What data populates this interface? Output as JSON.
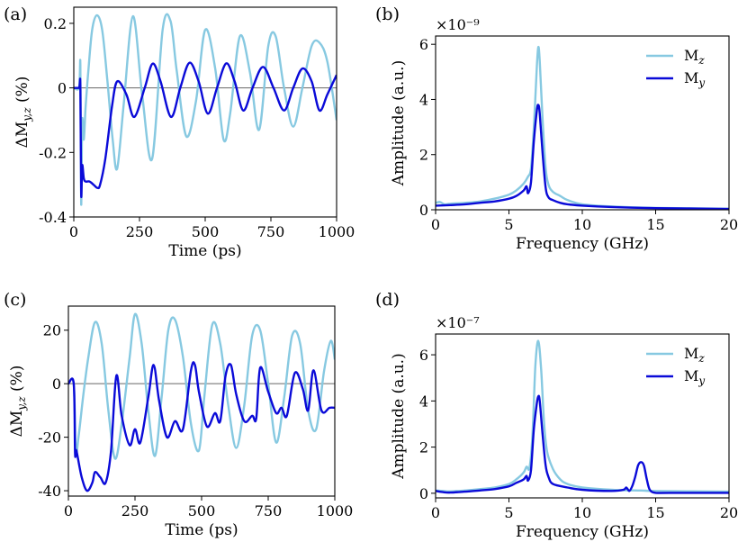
{
  "colors": {
    "light": "#87c9e1",
    "dark": "#0a0ad8",
    "axis": "#000000",
    "zero": "#666666"
  },
  "chart_data": [
    {
      "panel": "(a)",
      "type": "line",
      "xlabel": "Time (ps)",
      "ylabel": "ΔM_y,z (%)",
      "xlim": [
        0,
        1000
      ],
      "ylim": [
        -0.4,
        0.25
      ],
      "xticks": [
        0,
        250,
        500,
        750,
        1000
      ],
      "xtick_labels": [
        "0",
        "250",
        "500",
        "750",
        "1000"
      ],
      "yticks": [
        -0.4,
        -0.2,
        0,
        0.2
      ],
      "ytick_labels": [
        "-0.4",
        "-0.2",
        "0",
        "0.2"
      ],
      "hline": 0,
      "series": [
        {
          "name": "M_z",
          "color": "light",
          "x": [
            0,
            20,
            25,
            28,
            32,
            38,
            45,
            55,
            70,
            88,
            108,
            128,
            148,
            165,
            190,
            225,
            260,
            298,
            338,
            368,
            392,
            428,
            465,
            500,
            538,
            570,
            595,
            632,
            670,
            705,
            740,
            768,
            800,
            835,
            870,
            905,
            935,
            965,
            1000
          ],
          "y": [
            0,
            0,
            0.07,
            -0.36,
            -0.1,
            -0.16,
            -0.06,
            0.05,
            0.18,
            0.225,
            0.18,
            0.02,
            -0.16,
            -0.25,
            -0.05,
            0.222,
            -0.02,
            -0.22,
            0.18,
            0.207,
            0.05,
            -0.15,
            -0.04,
            0.18,
            0.06,
            -0.16,
            -0.08,
            0.16,
            0.05,
            -0.13,
            0.13,
            0.16,
            0.0,
            -0.12,
            0.0,
            0.13,
            0.14,
            0.08,
            -0.1
          ]
        },
        {
          "name": "M_y",
          "color": "dark",
          "x": [
            0,
            20,
            25,
            28,
            32,
            38,
            45,
            60,
            75,
            90,
            100,
            120,
            145,
            165,
            200,
            230,
            270,
            300,
            330,
            370,
            405,
            440,
            475,
            510,
            545,
            580,
            612,
            645,
            680,
            720,
            760,
            800,
            835,
            870,
            905,
            935,
            965,
            1000
          ],
          "y": [
            0,
            0,
            0.005,
            -0.33,
            -0.24,
            -0.28,
            -0.29,
            -0.29,
            -0.3,
            -0.31,
            -0.3,
            -0.22,
            -0.06,
            0.02,
            -0.02,
            -0.09,
            0.0,
            0.075,
            0.02,
            -0.09,
            0.0,
            0.078,
            0.02,
            -0.08,
            0.0,
            0.076,
            0.02,
            -0.07,
            0.0,
            0.065,
            0.0,
            -0.07,
            0.0,
            0.06,
            0.02,
            -0.07,
            -0.02,
            0.04
          ]
        }
      ]
    },
    {
      "panel": "(b)",
      "type": "line",
      "xlabel": "Frequency (GHz)",
      "ylabel": "Amplitude (a.u.)",
      "scale_label": "×10⁻⁹",
      "xlim": [
        0,
        20
      ],
      "ylim": [
        0,
        6.3
      ],
      "xticks": [
        0,
        5,
        10,
        15,
        20
      ],
      "xtick_labels": [
        "0",
        "5",
        "10",
        "15",
        "20"
      ],
      "yticks": [
        0,
        2,
        4,
        6
      ],
      "ytick_labels": [
        "0",
        "2",
        "4",
        "6"
      ],
      "legend": [
        "M_z",
        "M_y"
      ],
      "legend_position": "top-right",
      "series": [
        {
          "name": "M_z",
          "color": "light",
          "x": [
            0,
            0.3,
            0.6,
            1,
            2,
            3,
            4,
            5,
            5.5,
            6,
            6.3,
            6.5,
            6.7,
            6.9,
            7.0,
            7.1,
            7.3,
            7.5,
            7.7,
            8,
            8.5,
            9,
            10,
            12,
            15,
            20
          ],
          "y": [
            0.25,
            0.28,
            0.2,
            0.22,
            0.25,
            0.3,
            0.4,
            0.55,
            0.7,
            0.95,
            1.2,
            1.5,
            3,
            5.2,
            5.9,
            5.4,
            3.2,
            1.5,
            0.9,
            0.65,
            0.5,
            0.35,
            0.2,
            0.12,
            0.07,
            0.04
          ]
        },
        {
          "name": "M_y",
          "color": "dark",
          "x": [
            0,
            1,
            2,
            3,
            4,
            5,
            5.5,
            6,
            6.2,
            6.3,
            6.5,
            6.7,
            6.9,
            7.0,
            7.1,
            7.3,
            7.5,
            7.7,
            8,
            8.5,
            9,
            10,
            12,
            15,
            20
          ],
          "y": [
            0.15,
            0.17,
            0.2,
            0.25,
            0.3,
            0.4,
            0.5,
            0.7,
            0.85,
            0.6,
            1.0,
            2.5,
            3.6,
            3.8,
            3.5,
            2.0,
            0.8,
            0.45,
            0.35,
            0.25,
            0.2,
            0.15,
            0.1,
            0.06,
            0.03
          ]
        }
      ]
    },
    {
      "panel": "(c)",
      "type": "line",
      "xlabel": "Time (ps)",
      "ylabel": "ΔM_y,z (%)",
      "xlim": [
        0,
        1000
      ],
      "ylim": [
        -42,
        29
      ],
      "xticks": [
        0,
        250,
        500,
        750,
        1000
      ],
      "xtick_labels": [
        "0",
        "250",
        "500",
        "750",
        "1000"
      ],
      "yticks": [
        -40,
        -20,
        0,
        20
      ],
      "ytick_labels": [
        "-40",
        "-20",
        "0",
        "20"
      ],
      "hline": 0,
      "series": [
        {
          "name": "M_z",
          "color": "light",
          "x": [
            0,
            20,
            28,
            38,
            55,
            75,
            100,
            125,
            150,
            175,
            200,
            230,
            250,
            275,
            300,
            325,
            350,
            375,
            400,
            430,
            460,
            490,
            510,
            540,
            570,
            600,
            630,
            660,
            690,
            720,
            750,
            780,
            810,
            840,
            870,
            900,
            930,
            960,
            985,
            1000
          ],
          "y": [
            0,
            0,
            -25,
            -20,
            -5,
            10,
            23,
            15,
            -10,
            -28,
            -15,
            10,
            26,
            15,
            -10,
            -27,
            -5,
            20,
            24,
            10,
            -15,
            -25,
            -5,
            22,
            15,
            -8,
            -24,
            -8,
            18,
            20,
            0,
            -22,
            -5,
            18,
            15,
            -10,
            -17,
            5,
            16,
            9
          ]
        },
        {
          "name": "M_y",
          "color": "dark",
          "x": [
            0,
            20,
            25,
            30,
            50,
            70,
            90,
            100,
            120,
            140,
            160,
            180,
            200,
            230,
            250,
            270,
            300,
            320,
            340,
            370,
            400,
            430,
            460,
            475,
            490,
            520,
            550,
            570,
            590,
            610,
            630,
            660,
            690,
            705,
            720,
            750,
            780,
            800,
            820,
            850,
            880,
            900,
            920,
            950,
            980,
            1000
          ],
          "y": [
            0,
            0,
            -26,
            -25,
            -35,
            -40,
            -37,
            -33,
            -35,
            -37,
            -25,
            3,
            -12,
            -23,
            -17,
            -22,
            -5,
            7,
            -6,
            -20,
            -14,
            -17,
            5,
            7,
            -3,
            -16,
            -11,
            -14,
            3,
            7,
            -4,
            -14,
            -12,
            -13,
            6,
            -3,
            -11,
            -9,
            -12,
            4,
            -2,
            -10,
            5,
            -10,
            -9,
            -9
          ]
        }
      ]
    },
    {
      "panel": "(d)",
      "type": "line",
      "xlabel": "Frequency (GHz)",
      "ylabel": "Amplitude (a.u.)",
      "scale_label": "×10⁻⁷",
      "xlim": [
        0,
        20
      ],
      "ylim": [
        -0.2,
        6.9
      ],
      "xticks": [
        0,
        5,
        10,
        15,
        20
      ],
      "xtick_labels": [
        "0",
        "5",
        "10",
        "15",
        "20"
      ],
      "yticks": [
        0,
        2,
        4,
        6
      ],
      "ytick_labels": [
        "0",
        "2",
        "4",
        "6"
      ],
      "legend": [
        "M_z",
        "M_y"
      ],
      "legend_position": "top-right",
      "series": [
        {
          "name": "M_z",
          "color": "light",
          "x": [
            0,
            0.5,
            1,
            2,
            3,
            4,
            5,
            5.5,
            6,
            6.2,
            6.4,
            6.6,
            6.8,
            7.0,
            7.2,
            7.4,
            7.6,
            8,
            8.5,
            9,
            10,
            12,
            14,
            15,
            20
          ],
          "y": [
            0.12,
            0.1,
            0.08,
            0.12,
            0.18,
            0.25,
            0.4,
            0.6,
            0.9,
            1.15,
            1.1,
            2.5,
            5.5,
            6.6,
            5.3,
            3.0,
            1.8,
            1.05,
            0.6,
            0.4,
            0.25,
            0.15,
            0.12,
            0.1,
            0.07
          ]
        },
        {
          "name": "M_y",
          "color": "dark",
          "x": [
            0,
            0.5,
            1,
            2,
            3,
            4,
            5,
            5.5,
            6,
            6.2,
            6.3,
            6.5,
            6.7,
            6.9,
            7.0,
            7.1,
            7.3,
            7.5,
            7.7,
            8,
            9,
            10,
            12,
            12.8,
            13.0,
            13.2,
            13.4,
            13.6,
            13.8,
            14.0,
            14.2,
            14.4,
            14.6,
            15,
            16,
            20
          ],
          "y": [
            0.1,
            0.05,
            0.03,
            0.07,
            0.12,
            0.18,
            0.3,
            0.45,
            0.6,
            0.75,
            0.55,
            1.0,
            2.8,
            3.9,
            4.2,
            4.0,
            2.5,
            1.2,
            0.7,
            0.4,
            0.25,
            0.15,
            0.1,
            0.15,
            0.25,
            0.1,
            0.3,
            0.7,
            1.2,
            1.35,
            1.2,
            0.6,
            0.15,
            0.02,
            0.02,
            0.02
          ]
        }
      ]
    }
  ]
}
